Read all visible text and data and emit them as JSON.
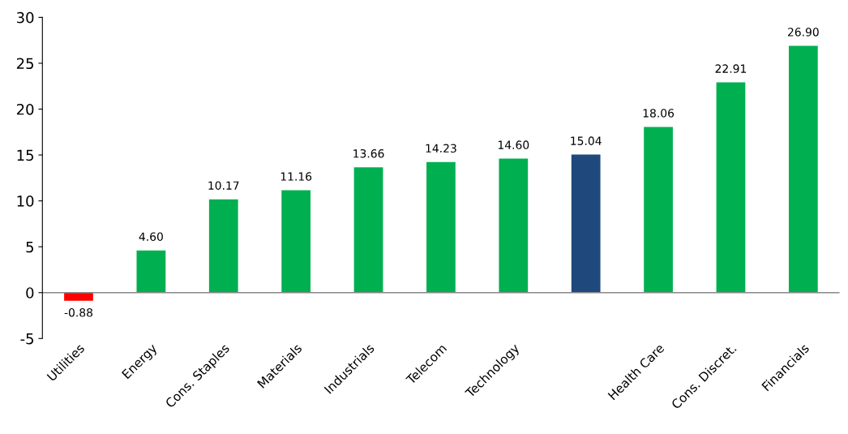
{
  "chart_data": {
    "type": "bar",
    "categories": [
      "Utilities",
      "Energy",
      "Cons. Staples",
      "Materials",
      "Industrials",
      "Telecom",
      "Technology",
      null,
      "Health Care",
      "Cons. Discret.",
      "Financials"
    ],
    "values": [
      -0.88,
      4.6,
      10.17,
      11.16,
      13.66,
      14.23,
      14.6,
      15.04,
      18.06,
      22.91,
      26.9
    ],
    "value_labels": [
      "-0.88",
      "4.60",
      "10.17",
      "11.16",
      "13.66",
      "14.23",
      "14.60",
      "15.04",
      "18.06",
      "22.91",
      "26.90"
    ],
    "colors": [
      "#ff0000",
      "#00b050",
      "#00b050",
      "#00b050",
      "#00b050",
      "#00b050",
      "#00b050",
      "#1f497d",
      "#00b050",
      "#00b050",
      "#00b050"
    ],
    "ylim": [
      -5,
      30
    ],
    "yticks": [
      -5,
      0,
      5,
      10,
      15,
      20,
      25,
      30
    ],
    "grid": false,
    "ref_lines": [
      {
        "axis": "y",
        "value": 0
      }
    ],
    "legend": false
  }
}
